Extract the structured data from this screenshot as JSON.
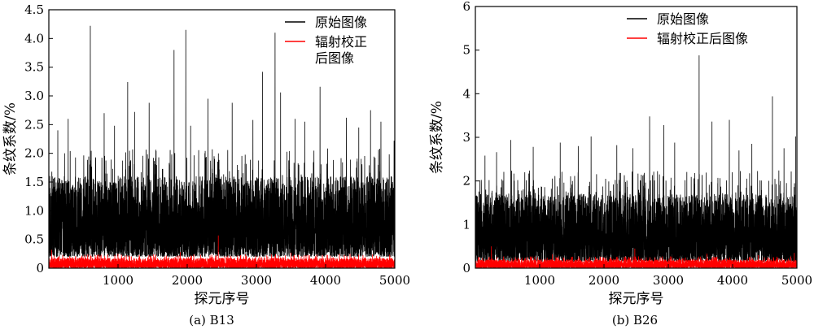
{
  "chart_data": [
    {
      "type": "line",
      "caption": "(a) B13",
      "xlabel": "探元序号",
      "ylabel": "条纹系数/%",
      "xlim": [
        0,
        5000
      ],
      "ylim": [
        0,
        4.5
      ],
      "xticks": [
        1000,
        2000,
        3000,
        4000,
        5000
      ],
      "yticks": [
        0,
        0.5,
        1.0,
        1.5,
        2.0,
        2.5,
        3.0,
        3.5,
        4.0,
        4.5
      ],
      "ytick_labels": [
        "0",
        "0.5",
        "1.0",
        "1.5",
        "2.0",
        "2.5",
        "3.0",
        "3.5",
        "4.0",
        "4.5"
      ],
      "legend_position": "top-right",
      "series": [
        {
          "name": "原始图像",
          "color": "#000000",
          "n_points": 5000,
          "typical_range": [
            0.2,
            1.6
          ],
          "peaks": [
            [
              600,
              4.22
            ],
            [
              1980,
              4.15
            ],
            [
              3270,
              4.1
            ],
            [
              1810,
              3.8
            ],
            [
              3090,
              3.42
            ],
            [
              1140,
              3.24
            ],
            [
              3920,
              3.16
            ],
            [
              3350,
              3.06
            ],
            [
              2300,
              2.95
            ],
            [
              1450,
              2.88
            ],
            [
              2650,
              2.88
            ],
            [
              4650,
              2.75
            ],
            [
              800,
              2.7
            ],
            [
              1240,
              2.72
            ],
            [
              3560,
              2.6
            ],
            [
              280,
              2.6
            ],
            [
              4300,
              2.62
            ],
            [
              2950,
              2.58
            ],
            [
              4800,
              2.55
            ],
            [
              3700,
              2.55
            ],
            [
              2050,
              2.48
            ],
            [
              950,
              2.48
            ],
            [
              4480,
              2.45
            ],
            [
              130,
              2.4
            ],
            [
              4990,
              2.22
            ]
          ]
        },
        {
          "name": "辐射校正后图像",
          "color": "#ff0000",
          "n_points": 5000,
          "typical_range": [
            0.0,
            0.18
          ],
          "peaks": [
            [
              2450,
              0.57
            ],
            [
              5000,
              0.48
            ],
            [
              40,
              0.32
            ],
            [
              1900,
              0.28
            ],
            [
              3500,
              0.27
            ],
            [
              1000,
              0.25
            ],
            [
              4200,
              0.25
            ]
          ]
        }
      ]
    },
    {
      "type": "line",
      "caption": "(b) B26",
      "xlabel": "探元序号",
      "ylabel": "条纹系数/%",
      "xlim": [
        0,
        5000
      ],
      "ylim": [
        0,
        6
      ],
      "xticks": [
        1000,
        2000,
        3000,
        4000,
        5000
      ],
      "yticks": [
        0,
        1,
        2,
        3,
        4,
        5,
        6
      ],
      "ytick_labels": [
        "0",
        "1",
        "2",
        "3",
        "4",
        "5",
        "6"
      ],
      "legend_position": "top-right",
      "series": [
        {
          "name": "原始图像",
          "color": "#000000",
          "n_points": 5000,
          "typical_range": [
            0.15,
            1.7
          ],
          "peaks": [
            [
              3480,
              4.88
            ],
            [
              4620,
              3.94
            ],
            [
              2710,
              3.48
            ],
            [
              3950,
              3.4
            ],
            [
              3680,
              3.36
            ],
            [
              2930,
              3.28
            ],
            [
              1800,
              3.02
            ],
            [
              4980,
              3.02
            ],
            [
              550,
              2.94
            ],
            [
              1320,
              2.88
            ],
            [
              3100,
              2.88
            ],
            [
              4300,
              2.85
            ],
            [
              2200,
              2.82
            ],
            [
              900,
              2.78
            ],
            [
              1600,
              2.8
            ],
            [
              4800,
              2.75
            ],
            [
              150,
              2.58
            ],
            [
              330,
              2.66
            ],
            [
              2450,
              2.75
            ],
            [
              4100,
              2.7
            ]
          ]
        },
        {
          "name": "辐射校正后图像",
          "color": "#ff0000",
          "n_points": 5000,
          "typical_range": [
            0.0,
            0.2
          ],
          "peaks": [
            [
              250,
              0.5
            ],
            [
              2480,
              0.45
            ],
            [
              4960,
              0.35
            ],
            [
              1200,
              0.32
            ],
            [
              3600,
              0.33
            ],
            [
              4400,
              0.3
            ]
          ]
        }
      ]
    }
  ]
}
